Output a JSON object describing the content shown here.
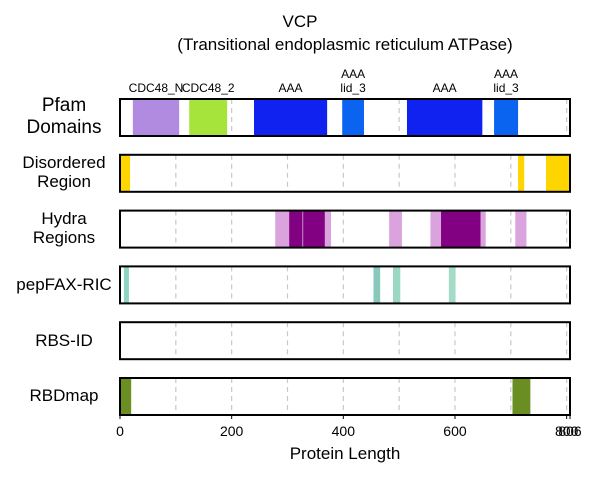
{
  "chart_data": {
    "type": "tracks",
    "title": "VCP",
    "subtitle": "(Transitional endoplasmic reticulum ATPase)",
    "xlabel": "Protein Length",
    "xlim": [
      0,
      806
    ],
    "xticks": [
      0,
      200,
      400,
      600,
      800,
      806
    ],
    "gridlines": [
      100,
      200,
      300,
      400,
      500,
      600,
      700,
      800
    ],
    "tracks": [
      {
        "name": "Pfam\nDomains",
        "segments": [
          {
            "start": 23,
            "end": 106,
            "color": "#b08be0",
            "label": "CDC48_N"
          },
          {
            "start": 124,
            "end": 192,
            "color": "#a6e33b",
            "label": "CDC48_2"
          },
          {
            "start": 240,
            "end": 371,
            "color": "#1022f0",
            "label": "AAA"
          },
          {
            "start": 398,
            "end": 437,
            "color": "#0a64f0",
            "label": "AAA\nlid_3"
          },
          {
            "start": 514,
            "end": 649,
            "color": "#1022f0",
            "label": "AAA"
          },
          {
            "start": 670,
            "end": 713,
            "color": "#0a64f0",
            "label": "AAA\nlid_3"
          }
        ]
      },
      {
        "name": "Disordered\nRegion",
        "segments": [
          {
            "start": 0,
            "end": 18,
            "color": "#ffd500"
          },
          {
            "start": 713,
            "end": 724,
            "color": "#ffd500"
          },
          {
            "start": 763,
            "end": 806,
            "color": "#ffd500"
          }
        ]
      },
      {
        "name": "Hydra\nRegions",
        "segments": [
          {
            "start": 278,
            "end": 303,
            "color": "#dba3de"
          },
          {
            "start": 303,
            "end": 327,
            "color": "#820082"
          },
          {
            "start": 328,
            "end": 367,
            "color": "#820082"
          },
          {
            "start": 367,
            "end": 378,
            "color": "#dba3de"
          },
          {
            "start": 482,
            "end": 505,
            "color": "#dba3de"
          },
          {
            "start": 556,
            "end": 575,
            "color": "#dba3de"
          },
          {
            "start": 575,
            "end": 646,
            "color": "#820082"
          },
          {
            "start": 646,
            "end": 655,
            "color": "#dba3de"
          },
          {
            "start": 708,
            "end": 728,
            "color": "#dba3de"
          }
        ]
      },
      {
        "name": "pepFAX-RIC",
        "segments": [
          {
            "start": 7,
            "end": 16,
            "color": "#8fd3c2"
          },
          {
            "start": 454,
            "end": 466,
            "color": "#88c9be"
          },
          {
            "start": 489,
            "end": 502,
            "color": "#9ad8c4"
          },
          {
            "start": 589,
            "end": 601,
            "color": "#a5dcc8"
          }
        ]
      },
      {
        "name": "RBS-ID",
        "segments": []
      },
      {
        "name": "RBDmap",
        "segments": [
          {
            "start": 0,
            "end": 20,
            "color": "#6b8e23"
          },
          {
            "start": 703,
            "end": 735,
            "color": "#6b8e23"
          }
        ]
      }
    ]
  }
}
